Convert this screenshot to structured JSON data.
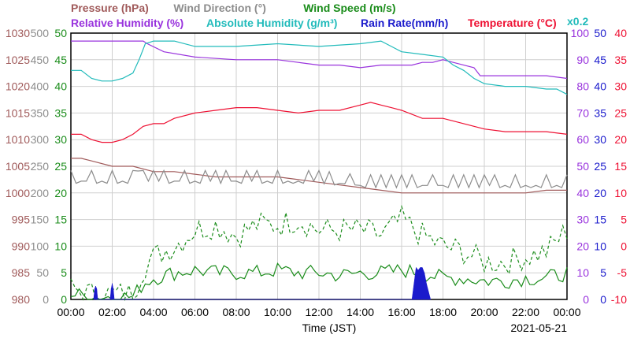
{
  "chart_data": {
    "type": "line",
    "date": "2021-05-21",
    "xlabel": "Time (JST)",
    "x_ticks": [
      "00:00",
      "02:00",
      "04:00",
      "06:00",
      "08:00",
      "10:00",
      "12:00",
      "14:00",
      "16:00",
      "18:00",
      "20:00",
      "22:00",
      "00:00"
    ],
    "x_range_hours": [
      0,
      24
    ],
    "grid": true,
    "legend": {
      "row1": [
        {
          "text": "Pressure (hPa)",
          "color": "#a05a5a"
        },
        {
          "text": "Wind Direction (°)",
          "color": "#8c8c8c"
        },
        {
          "text": "Wind Speed (m/s)",
          "color": "#1a8c1a"
        }
      ],
      "row2": [
        {
          "text": "Relative Humidity (%)",
          "color": "#9933dd"
        },
        {
          "text": "Absolute Humidity (g/m³)",
          "color": "#22bbbb"
        },
        {
          "text": "Rain Rate(mm/h)",
          "color": "#1a1acc"
        },
        {
          "text": "Temperature (°C)",
          "color": "#ee1133"
        }
      ],
      "abs_humidity_scale": "x0.2"
    },
    "axes": {
      "pressure": {
        "label_color": "#a05a5a",
        "ticks": [
          "1030",
          "1025",
          "1020",
          "1015",
          "1010",
          "1005",
          "1000",
          "995",
          "990",
          "985",
          "980"
        ],
        "range": [
          980,
          1030
        ]
      },
      "wind_direction": {
        "label_color": "#8c8c8c",
        "ticks": [
          "500",
          "450",
          "400",
          "350",
          "300",
          "250",
          "200",
          "150",
          "100",
          "50",
          "0"
        ],
        "range": [
          0,
          500
        ]
      },
      "wind_speed": {
        "label_color": "#1a8c1a",
        "ticks": [
          "50",
          "45",
          "40",
          "35",
          "30",
          "25",
          "20",
          "15",
          "10",
          "5",
          "0"
        ],
        "range": [
          0,
          50
        ]
      },
      "relative_humidity": {
        "label_color": "#9933dd",
        "ticks": [
          "100",
          "90",
          "80",
          "70",
          "60",
          "50",
          "40",
          "30",
          "20",
          "10",
          "0"
        ],
        "range": [
          0,
          100
        ]
      },
      "rain_rate": {
        "label_color": "#1a1acc",
        "ticks": [
          "50",
          "45",
          "40",
          "35",
          "30",
          "25",
          "20",
          "15",
          "10",
          "5",
          "0"
        ],
        "range": [
          0,
          50
        ]
      },
      "temperature": {
        "label_color": "#ee1133",
        "ticks": [
          "40",
          "35",
          "30",
          "25",
          "20",
          "15",
          "10",
          "5",
          "0",
          "-5",
          "-10"
        ],
        "range": [
          -10,
          40
        ]
      }
    },
    "series": [
      {
        "name": "Relative Humidity (%)",
        "axis": "relative_humidity",
        "color": "#9933dd",
        "x": [
          0,
          3.5,
          3.7,
          4.5,
          6,
          8,
          10,
          11,
          12,
          13,
          14,
          15,
          16,
          16.5,
          17,
          17.5,
          18,
          18.5,
          19,
          19.5,
          19.8,
          20.5,
          22,
          23,
          24
        ],
        "y": [
          97,
          97,
          96,
          93,
          91,
          90,
          90,
          89,
          88,
          88,
          87,
          88,
          88,
          88,
          89,
          89,
          90,
          89,
          88,
          87,
          84,
          84,
          84,
          84,
          83
        ]
      },
      {
        "name": "Absolute Humidity (g/m³)",
        "axis": "relative_humidity",
        "color": "#22bbbb",
        "x": [
          0,
          0.5,
          1,
          1.5,
          2,
          2.5,
          3,
          3.3,
          3.6,
          4,
          5,
          6,
          8,
          10,
          12,
          14,
          15,
          15.5,
          16,
          17,
          18,
          18.5,
          19,
          19.5,
          20,
          21,
          22,
          23,
          23.5,
          24
        ],
        "y": [
          86,
          86,
          83,
          82,
          82,
          83,
          85,
          90,
          96,
          97,
          97,
          95,
          95,
          96,
          95,
          96,
          97,
          95,
          93,
          92,
          91,
          88,
          86,
          83,
          81,
          80,
          80,
          79,
          79,
          77
        ]
      },
      {
        "name": "Temperature (°C)",
        "axis": "temperature",
        "color": "#ee1133",
        "x": [
          0,
          0.5,
          1,
          1.5,
          2,
          2.5,
          3,
          3.5,
          4,
          4.5,
          5,
          6,
          7,
          8,
          9,
          10,
          11,
          12,
          13,
          14,
          14.5,
          15,
          15.5,
          16,
          17,
          17.5,
          18,
          19,
          20,
          21,
          22,
          23,
          24
        ],
        "y": [
          21,
          21,
          20,
          19.5,
          19.5,
          20,
          21,
          22.5,
          23,
          23,
          24,
          25,
          25.5,
          26,
          26,
          25.5,
          25,
          25.5,
          25.5,
          26.5,
          27,
          26.5,
          26,
          25.5,
          24,
          24,
          24,
          23,
          22,
          21.5,
          21.5,
          21.5,
          21
        ]
      },
      {
        "name": "Pressure (hPa)",
        "axis": "pressure",
        "color": "#a05a5a",
        "x": [
          0,
          0.5,
          1,
          2,
          3,
          4,
          5,
          6,
          7,
          8,
          9,
          10,
          11,
          12,
          13,
          14,
          15,
          16,
          17,
          18,
          19,
          20,
          21,
          22,
          23,
          24
        ],
        "y": [
          1006.5,
          1006.5,
          1006,
          1005,
          1005,
          1004,
          1004,
          1003.5,
          1003,
          1003,
          1003,
          1003,
          1002.5,
          1002,
          1001.5,
          1001,
          1000.5,
          1000,
          1000,
          1000,
          1000,
          1000,
          1000,
          1000,
          1000.5,
          1000.5
        ]
      },
      {
        "name": "Wind Direction (°)",
        "axis": "wind_direction",
        "color": "#8c8c8c",
        "x": [
          0,
          1,
          2,
          3,
          3.3,
          3.5,
          4,
          5,
          6,
          7,
          8,
          9,
          10,
          11,
          12,
          13,
          14,
          15,
          16,
          17,
          18,
          19,
          20,
          21,
          22,
          23,
          24
        ],
        "y": [
          222,
          222,
          222,
          222,
          245,
          222,
          222,
          222,
          222,
          222,
          222,
          222,
          222,
          222,
          222,
          218,
          214,
          214,
          214,
          214,
          214,
          214,
          214,
          214,
          214,
          214,
          214
        ],
        "jitter": 20
      },
      {
        "name": "Wind Speed (m/s) max",
        "axis": "wind_speed",
        "color": "#1a8c1a",
        "dashed": true,
        "x": [
          0,
          1,
          2,
          3,
          3.5,
          4,
          5,
          6,
          7,
          8,
          9,
          10,
          11,
          12,
          13,
          14,
          15,
          16,
          17,
          18,
          19,
          20,
          21,
          22,
          23,
          24
        ],
        "y": [
          2,
          1,
          1,
          1,
          6,
          8,
          10,
          13,
          14,
          12,
          14,
          14,
          15,
          13,
          13,
          13,
          12,
          15,
          12,
          10,
          9,
          7,
          7,
          8,
          9,
          13
        ]
      },
      {
        "name": "Wind Speed (m/s)",
        "axis": "wind_speed",
        "color": "#1a8c1a",
        "x": [
          0,
          1,
          2,
          3,
          3.5,
          4,
          5,
          6,
          7,
          8,
          9,
          10,
          11,
          12,
          13,
          14,
          15,
          16,
          17,
          18,
          19,
          20,
          21,
          22,
          23,
          24
        ],
        "y": [
          1,
          0.5,
          0.5,
          0.5,
          3,
          4,
          5,
          5.5,
          5,
          5,
          5,
          5.5,
          5,
          5,
          4.5,
          5,
          5,
          5.5,
          5,
          4,
          4,
          3.5,
          3.5,
          4,
          4,
          5
        ]
      },
      {
        "name": "Rain Rate(mm/h)",
        "axis": "rain_rate",
        "color": "#1a1acc",
        "fill": true,
        "x": [
          1.1,
          1.15,
          1.2,
          1.25,
          1.3,
          1.9,
          1.95,
          2.0,
          2.05,
          2.1,
          16.5,
          16.6,
          16.7,
          16.8,
          16.9,
          17.0,
          17.1,
          17.2,
          17.3,
          17.4
        ],
        "y": [
          0,
          2,
          2.5,
          2,
          0,
          0,
          2,
          3,
          2,
          0,
          0,
          3,
          6,
          5.5,
          6,
          6,
          5,
          3,
          1.5,
          0
        ]
      }
    ]
  }
}
